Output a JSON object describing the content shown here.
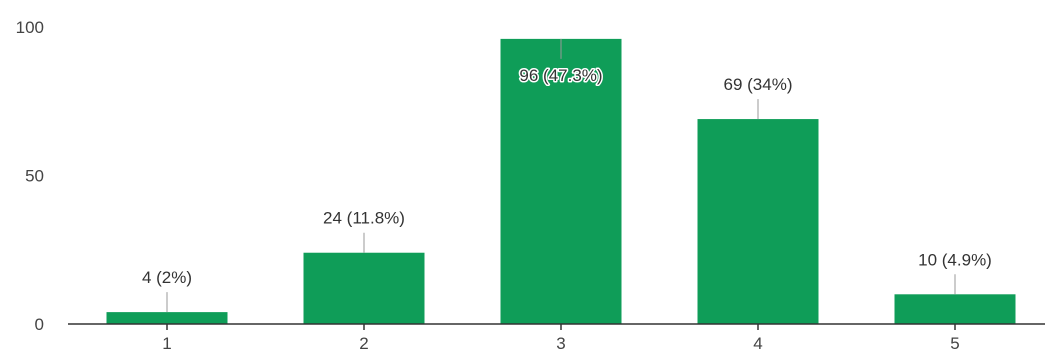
{
  "chart_data": {
    "type": "bar",
    "categories": [
      "1",
      "2",
      "3",
      "4",
      "5"
    ],
    "values": [
      4,
      24,
      96,
      69,
      10
    ],
    "data_labels": [
      "4 (2%)",
      "24 (11.8%)",
      "96 (47.3%)",
      "69 (34%)",
      "10 (4.9%)"
    ],
    "title": "",
    "xlabel": "",
    "ylabel": "",
    "ylim": [
      0,
      100
    ],
    "yticks": [
      0,
      50,
      100
    ],
    "ytick_labels": [
      "0",
      "50",
      "100"
    ],
    "grid": false,
    "legend": "none",
    "bar_color": "#0f9d58"
  }
}
